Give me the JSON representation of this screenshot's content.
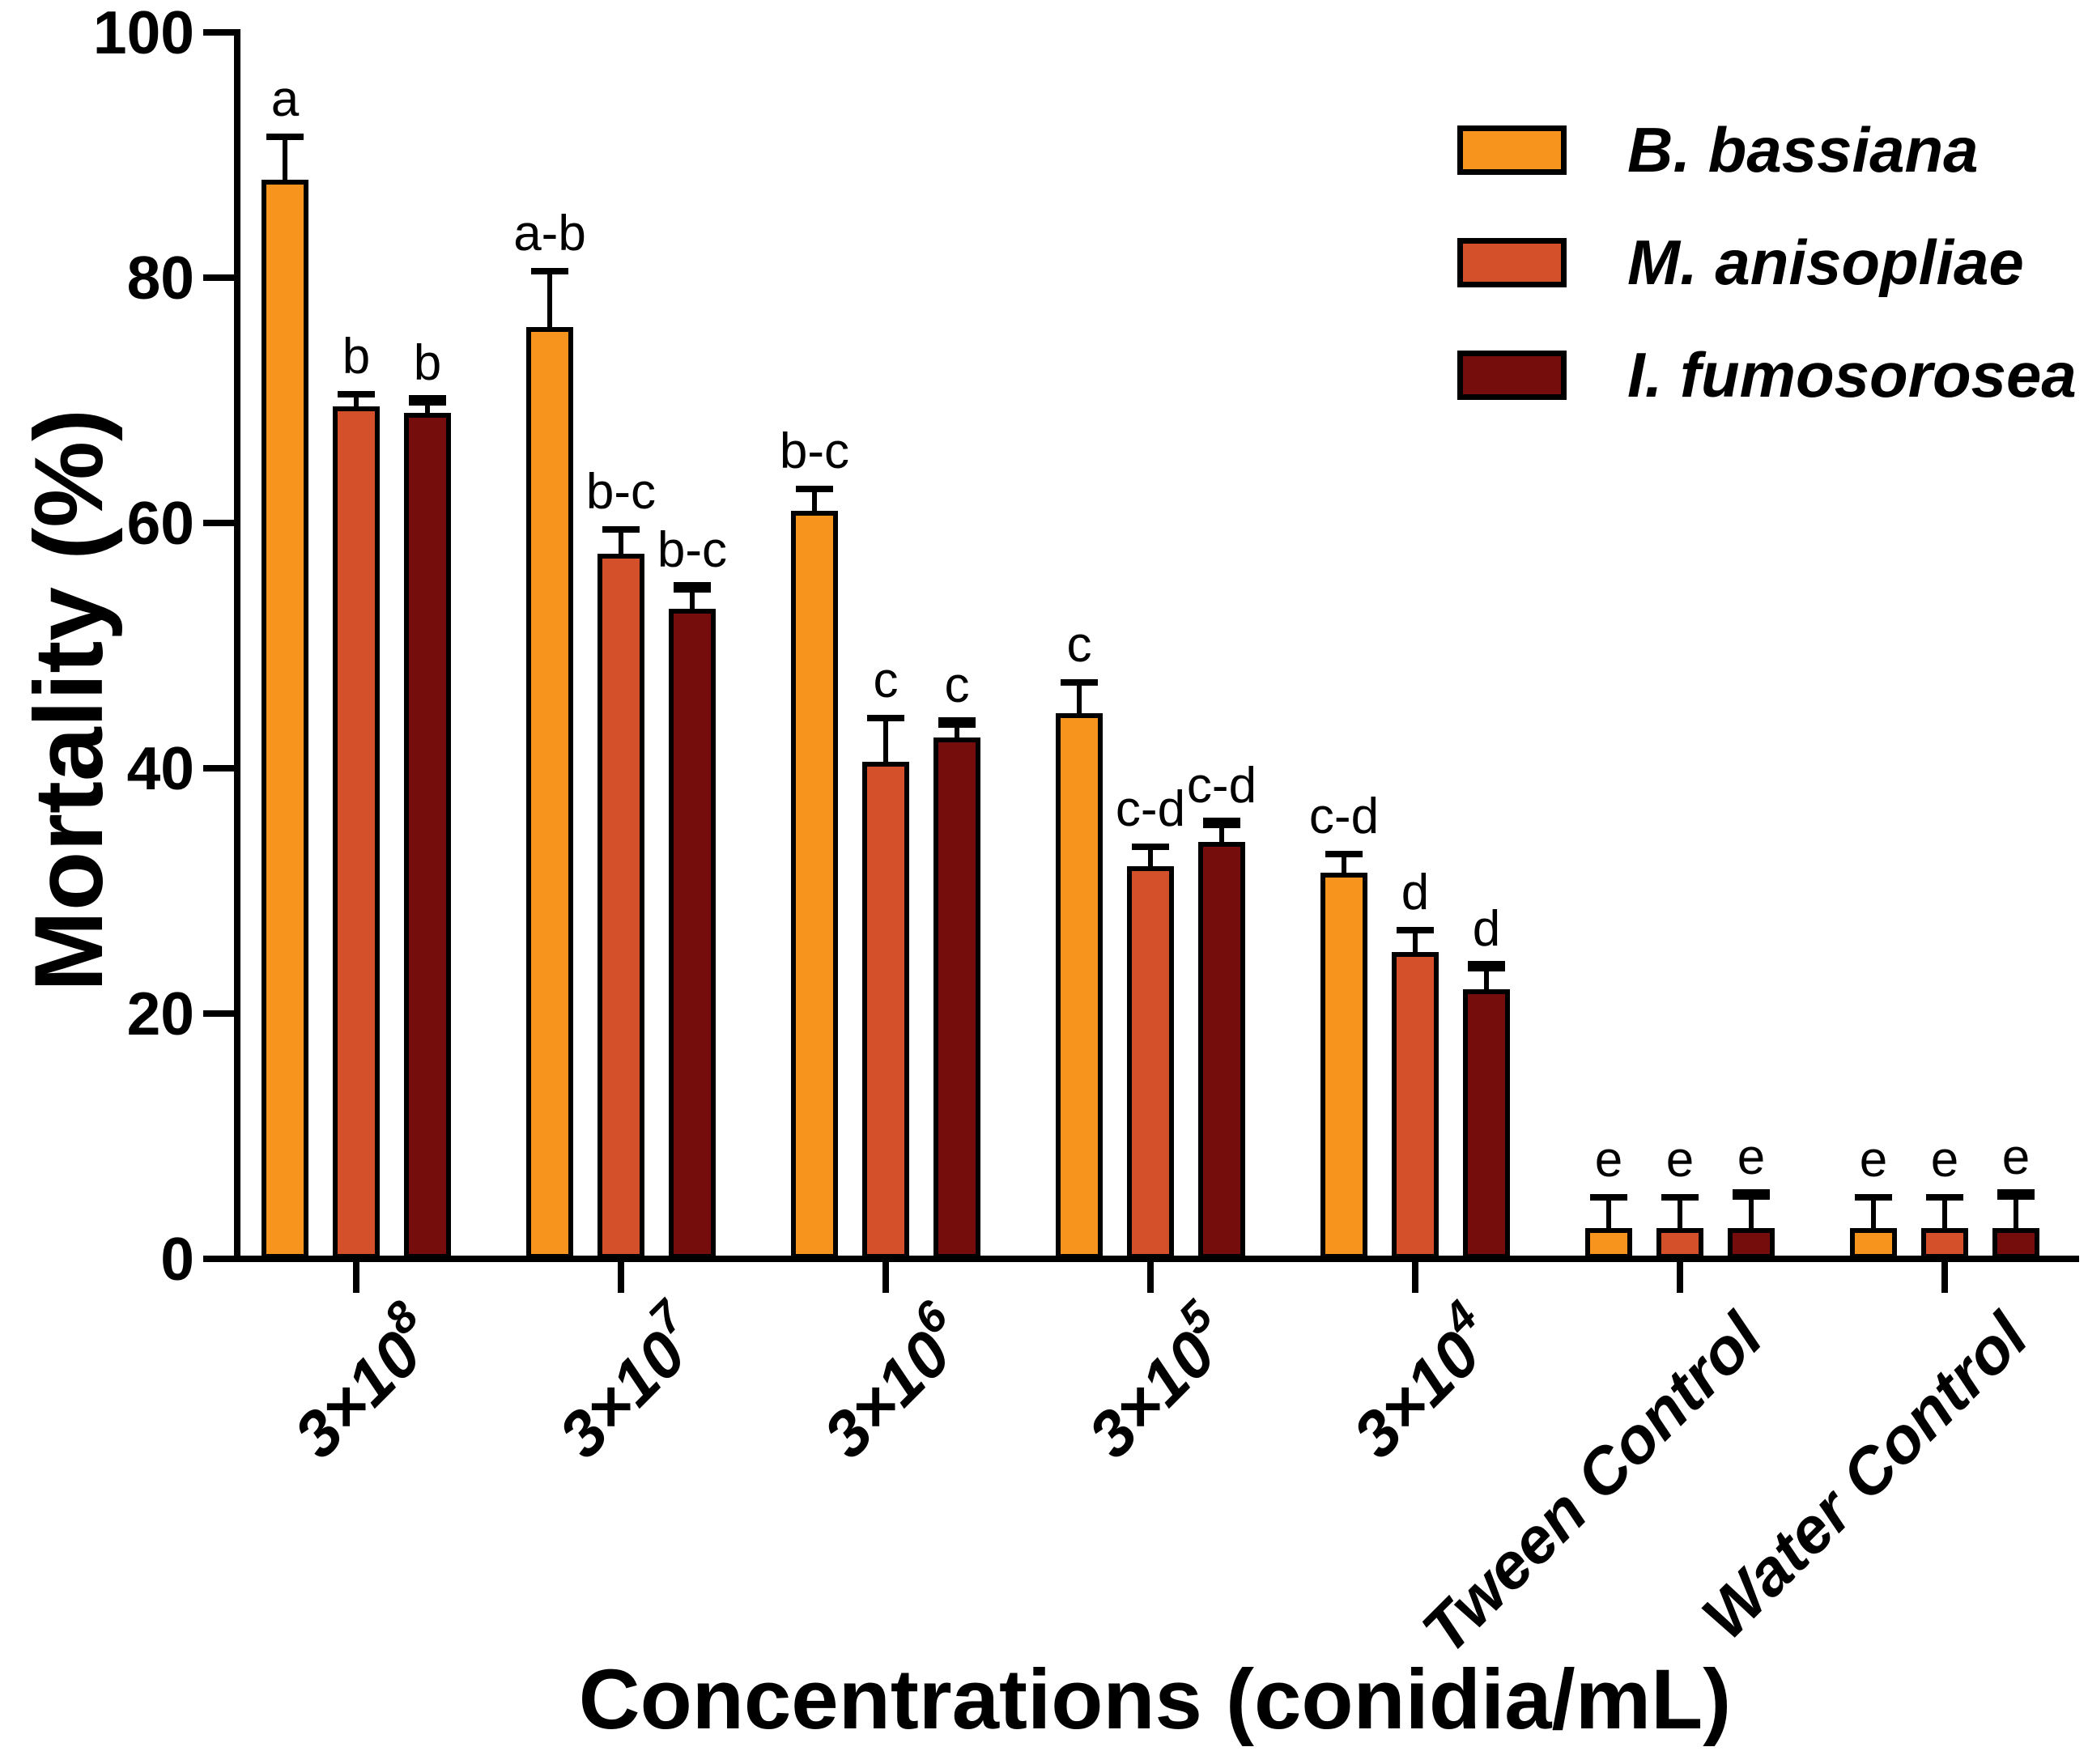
{
  "chart_data": {
    "type": "bar",
    "title": "",
    "xlabel": "Concentrations (conidia/mL)",
    "ylabel": "Mortality (%)",
    "ylim": [
      0,
      100
    ],
    "yticks": [
      0,
      20,
      40,
      60,
      80,
      100
    ],
    "grid": false,
    "legend_position": "top-right",
    "background": "#FFFFFF",
    "axis_color": "#000000",
    "categories": [
      "3×10^8",
      "3×10^7",
      "3×10^6",
      "3×10^5",
      "3×10^4",
      "Tween Control",
      "Water Control"
    ],
    "category_parts": [
      {
        "text": "3×10",
        "sup": "8"
      },
      {
        "text": "3×10",
        "sup": "7"
      },
      {
        "text": "3×10",
        "sup": "6"
      },
      {
        "text": "3×10",
        "sup": "5"
      },
      {
        "text": "3×10",
        "sup": "4"
      },
      {
        "text": "Tween Control",
        "sup": ""
      },
      {
        "text": "Water Control",
        "sup": ""
      }
    ],
    "series": [
      {
        "name": "B. bassiana",
        "color": "#F7941E",
        "values": [
          88,
          76,
          61,
          44.5,
          31.5,
          2.5,
          2.5
        ],
        "errors": [
          3.5,
          4.5,
          1.8,
          2.5,
          1.5,
          2.5,
          2.5
        ],
        "letters": [
          "a",
          "a-b",
          "b-c",
          "c",
          "c-d",
          "e",
          "e"
        ]
      },
      {
        "name": "M. anisopliae",
        "color": "#D4502B",
        "values": [
          69.5,
          57.5,
          40.5,
          32,
          25,
          2.5,
          2.5
        ],
        "errors": [
          1,
          2,
          3.6,
          1.6,
          1.8,
          2.5,
          2.5
        ],
        "letters": [
          "b",
          "b-c",
          "c",
          "c-d",
          "d",
          "e",
          "e"
        ]
      },
      {
        "name": "I. fumosorosea",
        "color": "#750D0C",
        "values": [
          69,
          53,
          42.5,
          34,
          22,
          2.5,
          2.5
        ],
        "errors": [
          1,
          1.7,
          1.2,
          1.5,
          1.8,
          2.7,
          2.7
        ],
        "letters": [
          "b",
          "b-c",
          "c",
          "c-d",
          "d",
          "e",
          "e"
        ]
      }
    ]
  }
}
